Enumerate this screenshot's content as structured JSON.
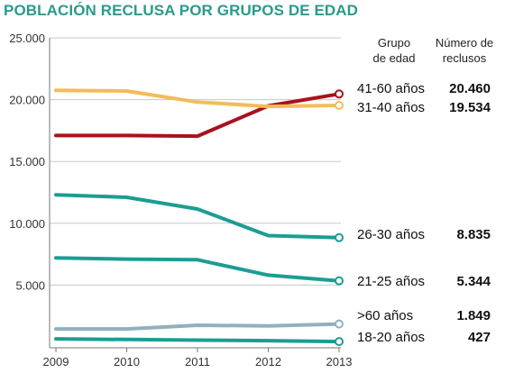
{
  "chart_data": {
    "type": "line",
    "title": "POBLACIÓN RECLUSA POR GRUPOS DE EDAD",
    "x": [
      "2009",
      "2010",
      "2011",
      "2012",
      "2013"
    ],
    "ylim": [
      0,
      25000
    ],
    "y_ticks": [
      "5.000",
      "10.000",
      "15.000",
      "20.000",
      "25.000"
    ],
    "grid": "horizontal",
    "legend_headers": {
      "group": [
        "Grupo",
        "de edad"
      ],
      "count": [
        "Número de",
        "reclusos"
      ]
    },
    "series": [
      {
        "name": "41-60 años",
        "value_label": "20.460",
        "color": "#a8121c",
        "values": [
          17100,
          17100,
          17050,
          19500,
          20460
        ]
      },
      {
        "name": "31-40 años",
        "value_label": "19.534",
        "color": "#f2bc5a",
        "values": [
          20750,
          20700,
          19800,
          19450,
          19534
        ]
      },
      {
        "name": "26-30 años",
        "value_label": "8.835",
        "color": "#1d9c92",
        "values": [
          12300,
          12100,
          11150,
          9000,
          8835
        ]
      },
      {
        "name": "21-25 años",
        "value_label": "5.344",
        "color": "#1d9c92",
        "values": [
          7200,
          7100,
          7050,
          5800,
          5344
        ]
      },
      {
        "name": ">60 años",
        "value_label": "1.849",
        "color": "#8fb1bd",
        "values": [
          1450,
          1450,
          1750,
          1700,
          1849
        ]
      },
      {
        "name": "18-20 años",
        "value_label": "427",
        "color": "#1d9c92",
        "values": [
          650,
          600,
          550,
          500,
          427
        ]
      }
    ]
  }
}
